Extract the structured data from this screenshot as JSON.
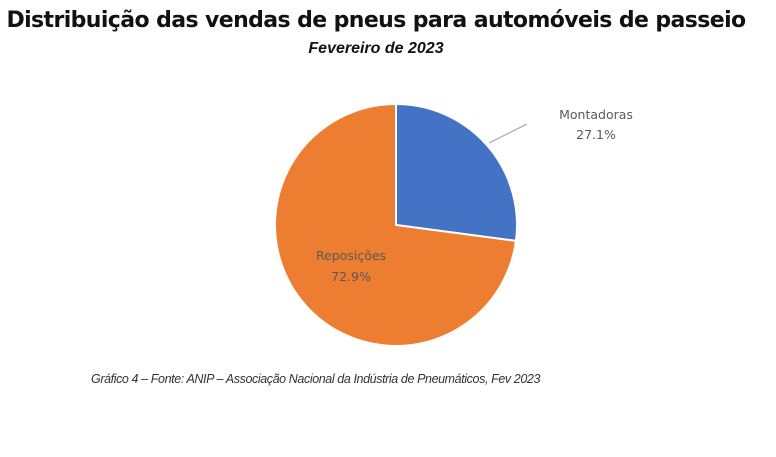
{
  "chart_data": {
    "type": "pie",
    "title": "Distribuição das vendas de pneus para automóveis de passeio",
    "subtitle": "Fevereiro de 2023",
    "slices": [
      {
        "label": "Montadoras",
        "value": 27.1,
        "value_label": "27.1%",
        "color": "#4472C4"
      },
      {
        "label": "Reposições",
        "value": 72.9,
        "value_label": "72.9%",
        "color": "#ED7D31"
      }
    ],
    "start_angle_deg": 0,
    "direction": "clockwise",
    "caption": "Gráfico 4 – Fonte: ANIP – Associação Nacional da Indústria de Pneumáticos, Fev 2023"
  }
}
